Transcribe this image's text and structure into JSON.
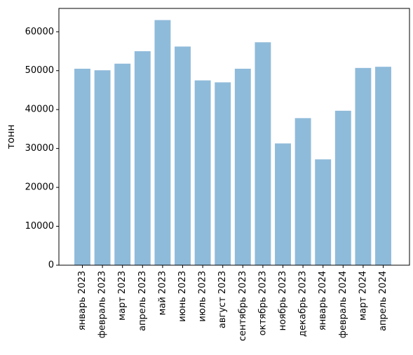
{
  "chart_data": {
    "type": "bar",
    "title": "",
    "xlabel": "",
    "ylabel": "тонн",
    "ylim": [
      0,
      66000
    ],
    "yticks": [
      0,
      10000,
      20000,
      30000,
      40000,
      50000,
      60000
    ],
    "grid": false,
    "bar_color": "#8fbbda",
    "categories": [
      "январь 2023",
      "февраль 2023",
      "март 2023",
      "апрель 2023",
      "май 2023",
      "июнь 2023",
      "июль 2023",
      "август 2023",
      "сентябрь 2023",
      "октябрь 2023",
      "ноябрь 2023",
      "декабрь 2023",
      "январь 2024",
      "февраль 2024",
      "март 2024",
      "апрель 2024"
    ],
    "values": [
      50500,
      50100,
      51800,
      55000,
      63000,
      56200,
      47500,
      47000,
      50500,
      57300,
      31300,
      37800,
      27200,
      39700,
      50700,
      51000
    ]
  }
}
